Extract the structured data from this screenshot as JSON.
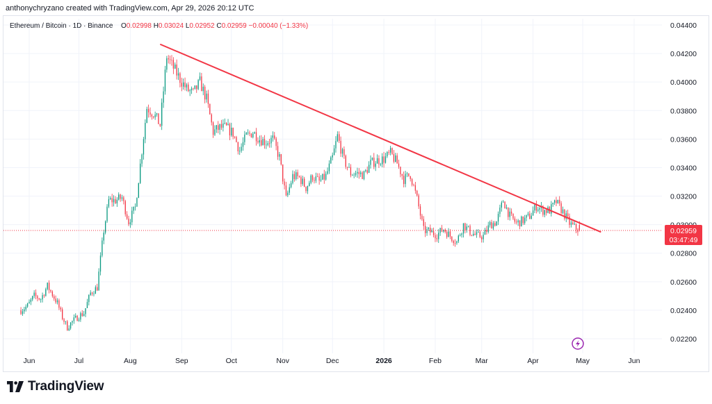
{
  "header": {
    "credit": "anthonychryzano created with TradingView.com, Apr 29, 2026 20:12 UTC"
  },
  "legend": {
    "symbol": "Ethereum / Bitcoin · 1D · Binance",
    "o_label": "O",
    "o_value": "0.02998",
    "h_label": "H",
    "h_value": "0.03024",
    "l_label": "L",
    "l_value": "0.02952",
    "c_label": "C",
    "c_value": "0.02959",
    "change": "−0.00040 (−1.33%)"
  },
  "price_tag": {
    "price": "0.02959",
    "countdown": "03:47:49"
  },
  "brand": {
    "name": "TradingView"
  },
  "colors": {
    "up": "#089981",
    "down": "#f23645",
    "trendline": "#f23645",
    "grid": "#f0f3fa",
    "text": "#131722"
  },
  "icons": {
    "flash": "lightning-icon"
  },
  "chart_data": {
    "type": "candlestick",
    "symbol": "ETHBTC",
    "timeframe": "1D",
    "y_axis": {
      "ticks": [
        "0.04400",
        "0.04200",
        "0.04000",
        "0.03800",
        "0.03600",
        "0.03400",
        "0.03200",
        "0.03000",
        "0.02800",
        "0.02600",
        "0.02400",
        "0.02200"
      ],
      "ylim": [
        0.0211,
        0.0446
      ],
      "side": "right"
    },
    "x_axis": {
      "ticks": [
        "Jun",
        "Jul",
        "Aug",
        "Sep",
        "Oct",
        "Nov",
        "Dec",
        "2026",
        "Feb",
        "Mar",
        "Apr",
        "May",
        "Jun"
      ]
    },
    "price_path": [
      [
        "2025-05-27",
        0.024
      ],
      [
        "2025-05-31",
        0.0243
      ],
      [
        "2025-06-04",
        0.025
      ],
      [
        "2025-06-08",
        0.0248
      ],
      [
        "2025-06-12",
        0.0257
      ],
      [
        "2025-06-15",
        0.0251
      ],
      [
        "2025-06-18",
        0.0245
      ],
      [
        "2025-06-21",
        0.0235
      ],
      [
        "2025-06-24",
        0.0228
      ],
      [
        "2025-06-27",
        0.0232
      ],
      [
        "2025-07-01",
        0.0236
      ],
      [
        "2025-07-04",
        0.0238
      ],
      [
        "2025-07-08",
        0.0252
      ],
      [
        "2025-07-12",
        0.0256
      ],
      [
        "2025-07-16",
        0.0296
      ],
      [
        "2025-07-19",
        0.0317
      ],
      [
        "2025-07-23",
        0.0317
      ],
      [
        "2025-07-27",
        0.0319
      ],
      [
        "2025-07-31",
        0.0302
      ],
      [
        "2025-08-04",
        0.0312
      ],
      [
        "2025-08-08",
        0.0352
      ],
      [
        "2025-08-11",
        0.0382
      ],
      [
        "2025-08-15",
        0.0378
      ],
      [
        "2025-08-19",
        0.037
      ],
      [
        "2025-08-23",
        0.0418
      ],
      [
        "2025-08-27",
        0.041
      ],
      [
        "2025-08-31",
        0.0402
      ],
      [
        "2025-09-04",
        0.0395
      ],
      [
        "2025-09-08",
        0.0392
      ],
      [
        "2025-09-12",
        0.04
      ],
      [
        "2025-09-16",
        0.0388
      ],
      [
        "2025-09-20",
        0.0365
      ],
      [
        "2025-09-24",
        0.0368
      ],
      [
        "2025-09-28",
        0.0368
      ],
      [
        "2025-10-02",
        0.0364
      ],
      [
        "2025-10-06",
        0.0352
      ],
      [
        "2025-10-10",
        0.0362
      ],
      [
        "2025-10-14",
        0.0365
      ],
      [
        "2025-10-18",
        0.036
      ],
      [
        "2025-10-22",
        0.0358
      ],
      [
        "2025-10-26",
        0.036
      ],
      [
        "2025-10-30",
        0.0347
      ],
      [
        "2025-11-03",
        0.0318
      ],
      [
        "2025-11-07",
        0.0334
      ],
      [
        "2025-11-11",
        0.0333
      ],
      [
        "2025-11-15",
        0.0326
      ],
      [
        "2025-11-19",
        0.0334
      ],
      [
        "2025-11-23",
        0.033
      ],
      [
        "2025-11-27",
        0.0334
      ],
      [
        "2025-12-01",
        0.0347
      ],
      [
        "2025-12-04",
        0.0362
      ],
      [
        "2025-12-08",
        0.0345
      ],
      [
        "2025-12-12",
        0.0336
      ],
      [
        "2025-12-16",
        0.0336
      ],
      [
        "2025-12-20",
        0.0335
      ],
      [
        "2025-12-24",
        0.0343
      ],
      [
        "2025-12-28",
        0.0345
      ],
      [
        "2026-01-01",
        0.0346
      ],
      [
        "2026-01-05",
        0.035
      ],
      [
        "2026-01-09",
        0.0343
      ],
      [
        "2026-01-13",
        0.0332
      ],
      [
        "2026-01-17",
        0.0335
      ],
      [
        "2026-01-21",
        0.0318
      ],
      [
        "2026-01-25",
        0.0296
      ],
      [
        "2026-01-29",
        0.0295
      ],
      [
        "2026-02-02",
        0.0293
      ],
      [
        "2026-02-06",
        0.0297
      ],
      [
        "2026-02-10",
        0.0292
      ],
      [
        "2026-02-14",
        0.0288
      ],
      [
        "2026-02-18",
        0.03
      ],
      [
        "2026-02-22",
        0.0295
      ],
      [
        "2026-02-26",
        0.0292
      ],
      [
        "2026-03-02",
        0.0292
      ],
      [
        "2026-03-06",
        0.03
      ],
      [
        "2026-03-10",
        0.0302
      ],
      [
        "2026-03-14",
        0.0317
      ],
      [
        "2026-03-18",
        0.0306
      ],
      [
        "2026-03-22",
        0.0301
      ],
      [
        "2026-03-26",
        0.0303
      ],
      [
        "2026-03-30",
        0.0306
      ],
      [
        "2026-04-03",
        0.0313
      ],
      [
        "2026-04-07",
        0.031
      ],
      [
        "2026-04-11",
        0.031
      ],
      [
        "2026-04-15",
        0.0316
      ],
      [
        "2026-04-19",
        0.0309
      ],
      [
        "2026-04-23",
        0.0301
      ],
      [
        "2026-04-26",
        0.0298
      ],
      [
        "2026-04-29",
        0.02959
      ]
    ],
    "trendline": {
      "start": [
        "2025-08-19",
        0.04265
      ],
      "end": [
        "2026-05-12",
        0.02948
      ],
      "color": "#f23645"
    },
    "last": {
      "open": 0.02998,
      "high": 0.03024,
      "low": 0.02952,
      "close": 0.02959
    },
    "grid": true
  }
}
